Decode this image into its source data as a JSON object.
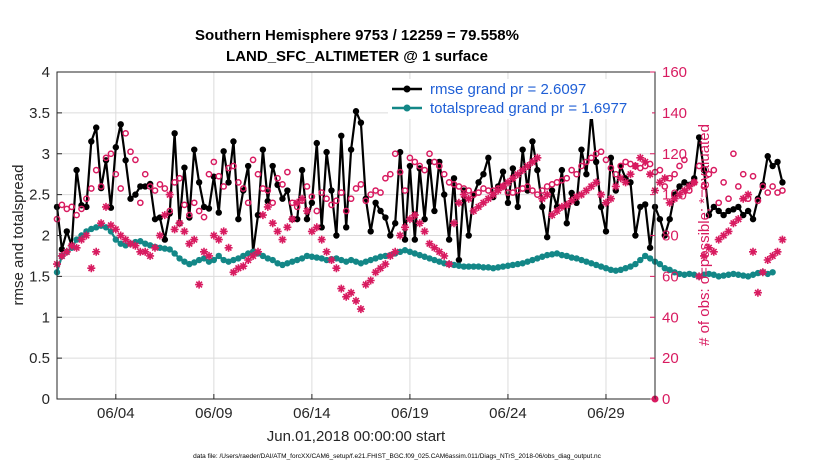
{
  "chart_data": {
    "type": "line",
    "title_line1": "Southern Hemisphere 9753 / 12259 = 79.558%",
    "title_line2": "LAND_SFC_ALTIMETER @ 1 surface",
    "xlabel": "Jun.01,2018 00:00:00 start",
    "ylabel_left": "rmse and totalspread",
    "ylabel_right": "# of obs: o=possible; *=evaluated",
    "footnote": "data file: /Users/raeder/DAI/ATM_forcXX/CAM6_setup/f.e21.FHIST_BGC.f09_025.CAM6assim.011/Diags_NTrS_2018-06/obs_diag_output.nc",
    "xlim": [
      1,
      31.5
    ],
    "ylim_left": [
      0,
      4
    ],
    "ylim_right": [
      0,
      160
    ],
    "x_ticks": [
      {
        "x": 4,
        "label": "06/04"
      },
      {
        "x": 9,
        "label": "06/09"
      },
      {
        "x": 14,
        "label": "06/14"
      },
      {
        "x": 19,
        "label": "06/19"
      },
      {
        "x": 24,
        "label": "06/24"
      },
      {
        "x": 29,
        "label": "06/29"
      }
    ],
    "y_ticks_left": [
      "0",
      "0.5",
      "1",
      "1.5",
      "2",
      "2.5",
      "3",
      "3.5",
      "4"
    ],
    "y_ticks_right": [
      "0",
      "20",
      "40",
      "60",
      "80",
      "100",
      "120",
      "140",
      "160"
    ],
    "time_step_days": 0.25,
    "series": [
      {
        "name": "rmse",
        "legend": "rmse grand pr = 2.6097",
        "color": "#000000",
        "axis": "left",
        "values": [
          2.35,
          1.83,
          2.05,
          1.88,
          2.8,
          2.37,
          2.35,
          3.15,
          3.32,
          2.58,
          2.92,
          2.34,
          3.08,
          3.36,
          2.92,
          2.45,
          2.5,
          2.6,
          2.6,
          2.63,
          2.2,
          2.22,
          1.95,
          2.27,
          3.25,
          2.15,
          2.83,
          2.22,
          3.05,
          2.65,
          2.35,
          2.33,
          2.72,
          2.28,
          3.03,
          2.65,
          3.15,
          2.2,
          2.55,
          2.85,
          1.8,
          2.25,
          3.05,
          2.42,
          2.85,
          2.62,
          2.45,
          2.55,
          2.2,
          2.2,
          2.8,
          2.2,
          2.4,
          3.13,
          2.1,
          3.02,
          2.55,
          2.0,
          3.22,
          2.1,
          3.05,
          3.52,
          3.38,
          2.45,
          2.05,
          2.4,
          2.3,
          2.22,
          2.0,
          2.15,
          3.02,
          1.95,
          2.85,
          1.95,
          2.82,
          2.2,
          2.9,
          2.3,
          2.9,
          2.5,
          1.95,
          2.7,
          1.7,
          2.55,
          2.0,
          2.5,
          2.65,
          2.75,
          2.95,
          2.47,
          2.6,
          2.78,
          2.4,
          2.82,
          2.35,
          3.05,
          2.55,
          3.15,
          2.8,
          2.35,
          1.98,
          2.55,
          2.35,
          2.8,
          2.15,
          2.52,
          2.4,
          3.05,
          2.75,
          3.5,
          2.9,
          2.35,
          2.05,
          2.95,
          2.55,
          2.85,
          2.7,
          2.65,
          2.0,
          2.35,
          2.38,
          1.85,
          2.35,
          2.2,
          2.0,
          2.2,
          2.5,
          2.6,
          2.65,
          2.62,
          2.7,
          3.2,
          2.8,
          2.25,
          2.35,
          2.3,
          2.25,
          2.3,
          2.32,
          2.35,
          2.25,
          2.3,
          2.2,
          2.45,
          2.62,
          2.97,
          2.85,
          2.9,
          2.65
        ]
      },
      {
        "name": "totalspread",
        "legend": "totalspread grand pr = 1.6977",
        "color": "#138787",
        "axis": "left",
        "values": [
          1.55,
          1.75,
          1.8,
          1.85,
          1.95,
          2.0,
          2.05,
          2.08,
          2.1,
          2.12,
          2.1,
          2.05,
          1.95,
          1.9,
          1.88,
          1.9,
          1.92,
          1.93,
          1.9,
          1.88,
          1.86,
          1.85,
          1.84,
          1.83,
          1.78,
          1.72,
          1.68,
          1.65,
          1.67,
          1.7,
          1.72,
          1.68,
          1.7,
          1.75,
          1.7,
          1.68,
          1.7,
          1.72,
          1.75,
          1.78,
          1.8,
          1.78,
          1.75,
          1.72,
          1.7,
          1.66,
          1.64,
          1.66,
          1.68,
          1.7,
          1.72,
          1.75,
          1.74,
          1.73,
          1.72,
          1.7,
          1.71,
          1.72,
          1.7,
          1.68,
          1.7,
          1.68,
          1.66,
          1.68,
          1.7,
          1.72,
          1.74,
          1.75,
          1.76,
          1.78,
          1.8,
          1.82,
          1.8,
          1.78,
          1.76,
          1.74,
          1.72,
          1.7,
          1.68,
          1.66,
          1.65,
          1.64,
          1.63,
          1.62,
          1.62,
          1.62,
          1.62,
          1.61,
          1.61,
          1.6,
          1.61,
          1.62,
          1.63,
          1.64,
          1.65,
          1.66,
          1.68,
          1.7,
          1.72,
          1.74,
          1.76,
          1.77,
          1.78,
          1.76,
          1.75,
          1.73,
          1.72,
          1.7,
          1.68,
          1.66,
          1.64,
          1.62,
          1.6,
          1.58,
          1.57,
          1.58,
          1.6,
          1.62,
          1.65,
          1.7,
          1.75,
          1.72,
          1.68,
          1.65,
          1.6,
          1.58,
          1.55,
          1.53,
          1.52,
          1.53,
          1.52,
          1.5,
          1.52,
          1.53,
          1.52,
          1.5,
          1.51,
          1.52,
          1.53,
          1.52,
          1.51,
          1.5,
          1.52,
          1.54,
          1.55,
          1.53,
          1.55
        ]
      },
      {
        "name": "possible",
        "legend": "o=possible",
        "color": "#d81b60",
        "axis": "right",
        "marker": "circle",
        "values": [
          88,
          95,
          93,
          94,
          90,
          93,
          98,
          103,
          112,
          104,
          118,
          120,
          110,
          103,
          130,
          121,
          117,
          96,
          110,
          104,
          102,
          105,
          103,
          92,
          106,
          108,
          95,
          90,
          96,
          92,
          89,
          110,
          116,
          109,
          104,
          113,
          114,
          106,
          103,
          96,
          117,
          110,
          103,
          102,
          96,
          108,
          105,
          111,
          96,
          94,
          97,
          104,
          99,
          92,
          101,
          98,
          95,
          97,
          101,
          92,
          98,
          103,
          105,
          97,
          100,
          102,
          101,
          108,
          110,
          120,
          111,
          102,
          118,
          116,
          114,
          112,
          120,
          116,
          114,
          110,
          106,
          105,
          104,
          103,
          102,
          100,
          101,
          103,
          102,
          102,
          103,
          104,
          101,
          101,
          102,
          103,
          104,
          102,
          100,
          102,
          104,
          105,
          106,
          107,
          108,
          112,
          110,
          114,
          116,
          118,
          120,
          121,
          117,
          113,
          110,
          114,
          116,
          115,
          114,
          113,
          114,
          115,
          111,
          112,
          104,
          108,
          110,
          114,
          117,
          102,
          106,
          114,
          104,
          110,
          112,
          96,
          106,
          98,
          120,
          104,
          110,
          98,
          109,
          97,
          104,
          101,
          104,
          101,
          102
        ]
      },
      {
        "name": "evaluated",
        "legend": "*=evaluated",
        "color": "#d81b60",
        "axis": "right",
        "marker": "star",
        "values": [
          66,
          70,
          72,
          75,
          74,
          78,
          80,
          64,
          72,
          86,
          94,
          85,
          83,
          80,
          78,
          76,
          75,
          72,
          72,
          70,
          74,
          80,
          90,
          100,
          83,
          86,
          82,
          76,
          78,
          56,
          72,
          70,
          80,
          78,
          82,
          74,
          62,
          64,
          65,
          68,
          70,
          72,
          90,
          94,
          86,
          82,
          78,
          84,
          88,
          96,
          98,
          92,
          82,
          84,
          78,
          72,
          68,
          64,
          54,
          50,
          52,
          48,
          44,
          56,
          58,
          62,
          64,
          66,
          70,
          72,
          80,
          84,
          88,
          90,
          86,
          82,
          76,
          74,
          72,
          70,
          66,
          86,
          96,
          100,
          98,
          92,
          94,
          96,
          98,
          100,
          102,
          104,
          106,
          108,
          110,
          112,
          114,
          116,
          118,
          98,
          100,
          90,
          92,
          94,
          95,
          97,
          99,
          100,
          102,
          104,
          106,
          100,
          96,
          98,
          104,
          108,
          106,
          110,
          114,
          118,
          116,
          110,
          102,
          106,
          108,
          96,
          98,
          100,
          102,
          104,
          106,
          60,
          70,
          74,
          72,
          78,
          80,
          82,
          86,
          88,
          98,
          100,
          72,
          52,
          62,
          68,
          70,
          72,
          78
        ]
      }
    ]
  }
}
